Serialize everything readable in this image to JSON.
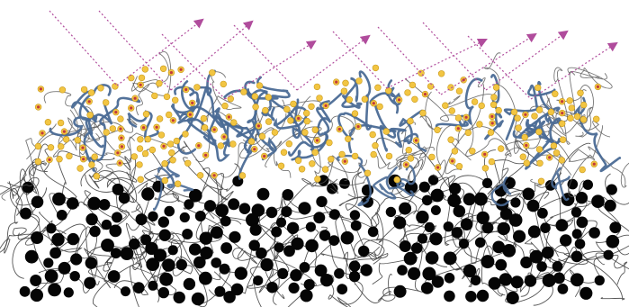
{
  "diagram": {
    "colors": {
      "background": "#ffffff",
      "bottom_chain": "#3a3a3a",
      "bottom_particle": "#050505",
      "top_chain_thin": "#555555",
      "top_chain_thick": "#4a6a95",
      "particle_yellow": "#f2c542",
      "particle_yellow_stroke": "#c99a1c",
      "particle_core_red": "#c23a3a",
      "arrow_color": "#b04c9c"
    },
    "icons": {
      "incident_ray": "dotted-line",
      "reflected_ray": "dotted-arrow"
    }
  }
}
